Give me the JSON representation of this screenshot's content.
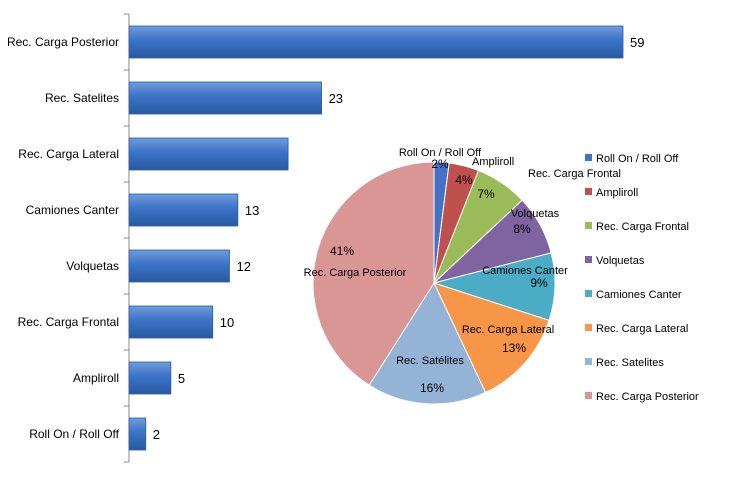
{
  "chart_data": [
    {
      "type": "bar",
      "orientation": "horizontal",
      "categories": [
        "Rec. Carga Posterior",
        "Rec. Satelites",
        "Rec. Carga Lateral",
        "Camiones Canter",
        "Volquetas",
        "Rec. Carga Frontal",
        "Ampliroll",
        "Roll On / Roll Off"
      ],
      "values": [
        59,
        23,
        "",
        13,
        12,
        10,
        5,
        2
      ],
      "bar_value_for_unlabeled": 19,
      "data_labels": [
        "59",
        "23",
        "",
        "13",
        "12",
        "10",
        "5",
        "2"
      ],
      "xlim": [
        0,
        70
      ],
      "grid": false,
      "color": "#3A73C4",
      "title": "",
      "xlabel": "",
      "ylabel": ""
    },
    {
      "type": "pie",
      "categories": [
        "Roll On / Roll Off",
        "Ampliroll",
        "Rec. Carga Frontal",
        "Volquetas",
        "Camiones Canter",
        "Rec. Carga Lateral",
        "Rec. Satélites",
        "Rec. Carga Posterior"
      ],
      "values": [
        2,
        4,
        7,
        8,
        9,
        13,
        16,
        41
      ],
      "slice_labels": [
        "Roll On / Roll Off",
        "Ampliroll",
        "Rec. Carga Frontal",
        "Volquetas",
        "Camiones Canter",
        "Rec. Carga Lateral",
        "Rec. Satélites",
        "Rec. Carga Posterior"
      ],
      "percent_labels": [
        "2%",
        "4%",
        "7%",
        "8%",
        "9%",
        "13%",
        "16%",
        "41%"
      ],
      "colors": [
        "#4472C4",
        "#C0504D",
        "#9BBB59",
        "#8064A2",
        "#4BACC6",
        "#F79646",
        "#95B3D7",
        "#D99694"
      ],
      "legend": {
        "placement": "right",
        "entries": [
          "Roll On / Roll Off",
          "Ampliroll",
          "Rec. Carga Frontal",
          "Volquetas",
          "Camiones Canter",
          "Rec. Carga Lateral",
          "Rec. Satelites",
          "Rec. Carga Posterior"
        ]
      }
    }
  ]
}
